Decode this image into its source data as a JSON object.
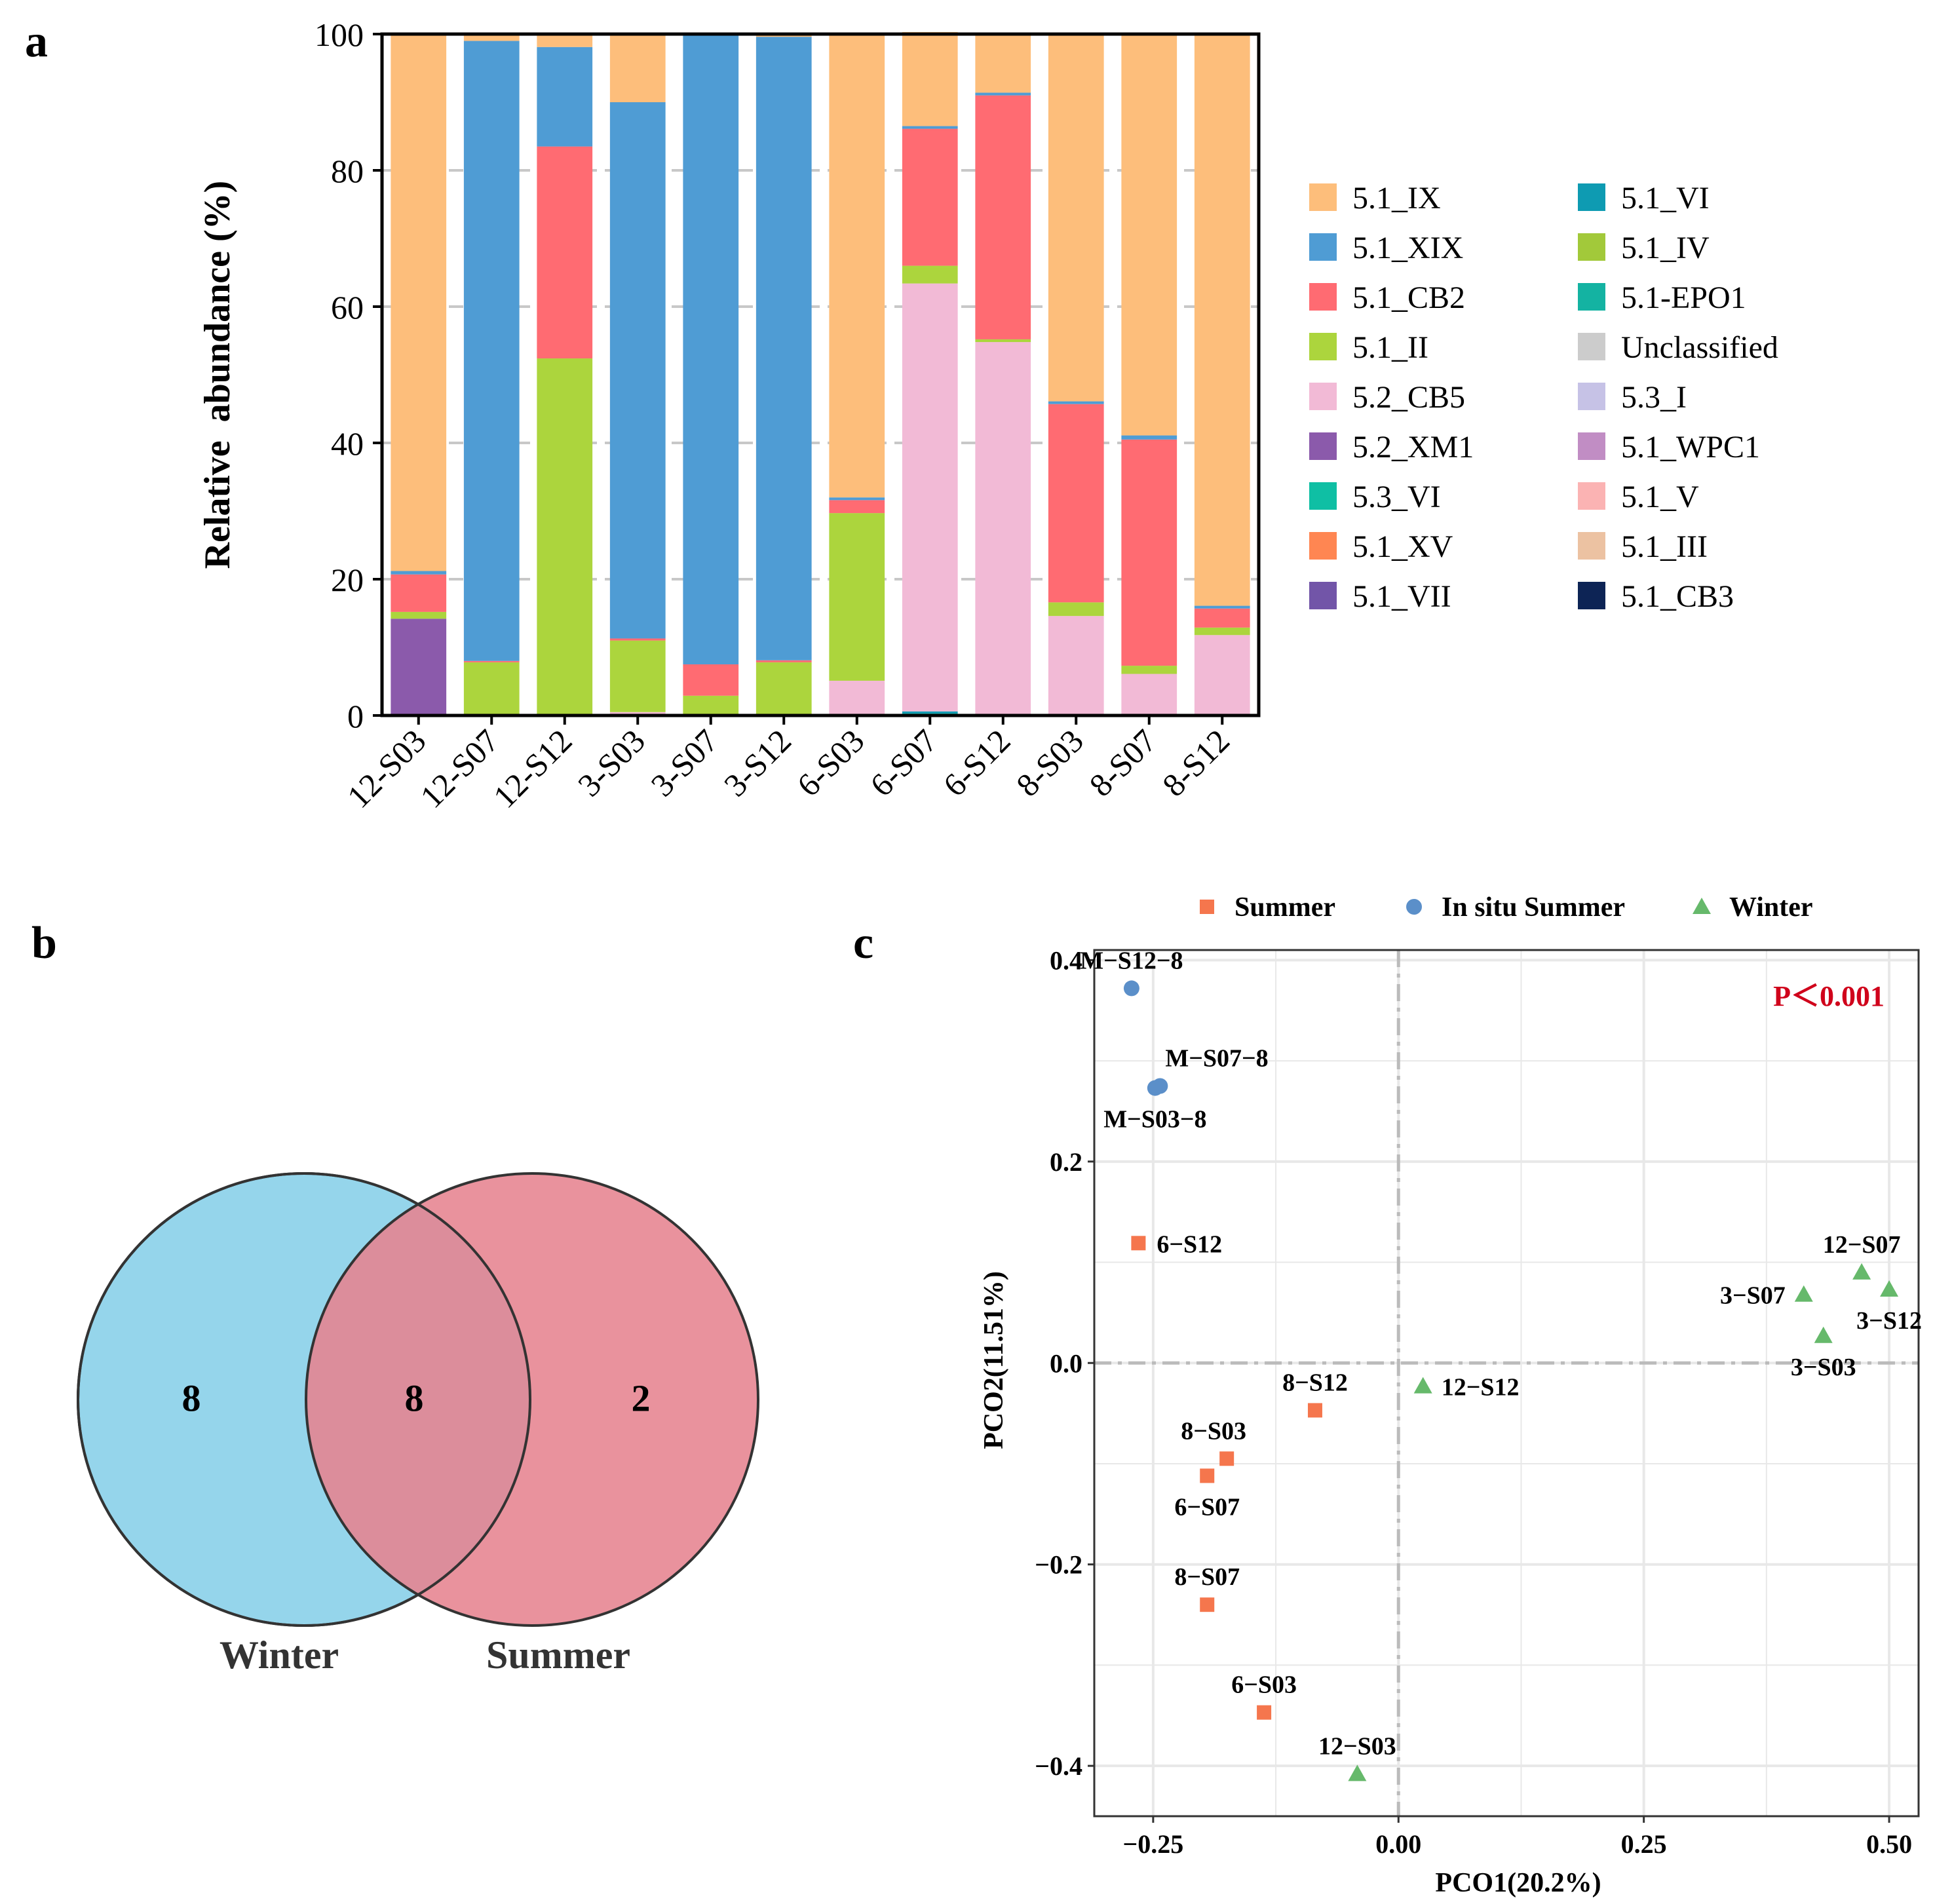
{
  "panels": {
    "a": "a",
    "b": "b",
    "c": "c"
  },
  "chart_data": [
    {
      "type": "bar",
      "stacked": true,
      "title": "",
      "xlabel": "",
      "ylabel": "Relative  abundance (%)",
      "ylim": [
        0,
        100
      ],
      "yticks": [
        0,
        20,
        40,
        60,
        80,
        100
      ],
      "grid": "horizontal dashed",
      "legend_position": "right",
      "categories": [
        "12-S03",
        "12-S07",
        "12-S12",
        "3-S03",
        "3-S07",
        "3-S12",
        "6-S03",
        "6-S07",
        "6-S12",
        "8-S03",
        "8-S07",
        "8-S12"
      ],
      "series": [
        {
          "name": "5.1_CB3",
          "color": "#0d2455",
          "values": [
            0,
            0,
            0,
            0,
            0,
            0,
            0,
            0,
            0,
            0,
            0,
            0
          ]
        },
        {
          "name": "5.1_III",
          "color": "#ecc2a2",
          "values": [
            0,
            0,
            0,
            0,
            0,
            0,
            0,
            0,
            0,
            0,
            0,
            0
          ]
        },
        {
          "name": "5.1_V",
          "color": "#fbb3b3",
          "values": [
            0,
            0,
            0,
            0,
            0,
            0,
            0,
            0,
            0,
            0,
            0,
            0
          ]
        },
        {
          "name": "5.1_WPC1",
          "color": "#c18dc4",
          "values": [
            0,
            0,
            0,
            0,
            0,
            0,
            0,
            0,
            0,
            0,
            0,
            0
          ]
        },
        {
          "name": "5.3_I",
          "color": "#c6c2e6",
          "values": [
            0,
            0,
            0,
            0,
            0,
            0,
            0,
            0,
            0,
            0,
            0,
            0
          ]
        },
        {
          "name": "Unclassified",
          "color": "#cccccc",
          "values": [
            0,
            0,
            0,
            0,
            0,
            0,
            0,
            0,
            0,
            0,
            0,
            0
          ]
        },
        {
          "name": "5.1-EPO1",
          "color": "#14b3a2",
          "values": [
            0,
            0,
            0,
            0,
            0,
            0,
            0,
            0.3,
            0,
            0,
            0,
            0
          ]
        },
        {
          "name": "5.1_IV",
          "color": "#a2c93a",
          "values": [
            0,
            0,
            0,
            0,
            0,
            0,
            0,
            0,
            0,
            0,
            0,
            0
          ]
        },
        {
          "name": "5.1_VI",
          "color": "#0e9bb2",
          "values": [
            0,
            0,
            0,
            0,
            0,
            0,
            0,
            0.3,
            0,
            0,
            0,
            0
          ]
        },
        {
          "name": "5.1_VII",
          "color": "#7255a8",
          "values": [
            0,
            0,
            0,
            0,
            0,
            0,
            0,
            0,
            0,
            0,
            0,
            0
          ]
        },
        {
          "name": "5.1_XV",
          "color": "#ff8652",
          "values": [
            0,
            0,
            0,
            0,
            0,
            0,
            0,
            0,
            0,
            0,
            0,
            0
          ]
        },
        {
          "name": "5.3_VI",
          "color": "#0fbfa4",
          "values": [
            0,
            0,
            0,
            0,
            0,
            0,
            0,
            0,
            0,
            0,
            0,
            0
          ]
        },
        {
          "name": "5.2_XM1",
          "color": "#8b5aab",
          "values": [
            14.2,
            0,
            0,
            0,
            0,
            0,
            0,
            0,
            0,
            0,
            0,
            0
          ]
        },
        {
          "name": "5.2_CB5",
          "color": "#f2bad6",
          "values": [
            0,
            0,
            0,
            0.5,
            0,
            0,
            5.1,
            62.8,
            54.8,
            14.6,
            6.1,
            11.8
          ]
        },
        {
          "name": "5.1_II",
          "color": "#acd53d",
          "values": [
            1.0,
            7.8,
            52.4,
            10.5,
            2.9,
            7.8,
            24.6,
            2.6,
            0.4,
            2.0,
            1.2,
            1.1
          ]
        },
        {
          "name": "5.1_CB2",
          "color": "#ff6b72",
          "values": [
            5.5,
            0.2,
            31.1,
            0.3,
            4.6,
            0.3,
            1.9,
            20.1,
            35.8,
            29.1,
            33.2,
            2.8
          ]
        },
        {
          "name": "5.1_XIX",
          "color": "#4f9cd4",
          "values": [
            0.5,
            91.0,
            14.6,
            78.7,
            92.4,
            91.5,
            0.4,
            0.4,
            0.4,
            0.4,
            0.6,
            0.4
          ]
        },
        {
          "name": "5.1_IX",
          "color": "#fdbe7b",
          "values": [
            78.8,
            1.0,
            1.9,
            10.0,
            0.1,
            0.4,
            68.0,
            13.8,
            8.6,
            53.9,
            58.9,
            83.9
          ]
        }
      ],
      "legend": [
        {
          "label": "5.1_IX",
          "color": "#fdbe7b"
        },
        {
          "label": "5.1_XIX",
          "color": "#4f9cd4"
        },
        {
          "label": "5.1_CB2",
          "color": "#ff6b72"
        },
        {
          "label": "5.1_II",
          "color": "#acd53d"
        },
        {
          "label": "5.2_CB5",
          "color": "#f2bad6"
        },
        {
          "label": "5.2_XM1",
          "color": "#8b5aab"
        },
        {
          "label": "5.3_VI",
          "color": "#0fbfa4"
        },
        {
          "label": "5.1_XV",
          "color": "#ff8652"
        },
        {
          "label": "5.1_VII",
          "color": "#7255a8"
        },
        {
          "label": "5.1_VI",
          "color": "#0e9bb2"
        },
        {
          "label": "5.1_IV",
          "color": "#a2c93a"
        },
        {
          "label": "5.1-EPO1",
          "color": "#14b3a2"
        },
        {
          "label": "Unclassified",
          "color": "#cccccc"
        },
        {
          "label": "5.3_I",
          "color": "#c6c2e6"
        },
        {
          "label": "5.1_WPC1",
          "color": "#c18dc4"
        },
        {
          "label": "5.1_V",
          "color": "#fbb3b3"
        },
        {
          "label": "5.1_III",
          "color": "#ecc2a2"
        },
        {
          "label": "5.1_CB3",
          "color": "#0d2455"
        }
      ]
    },
    {
      "type": "venn",
      "sets": [
        {
          "name": "Winter",
          "unique": "8",
          "color": "#8fd3ea"
        },
        {
          "name": "Summer",
          "unique": "2",
          "color": "#e6838f"
        }
      ],
      "intersection": "8"
    },
    {
      "type": "scatter",
      "xlabel": "PCO1(20.2%)",
      "ylabel": "PCO2(11.51%)",
      "xlim": [
        -0.31,
        0.53
      ],
      "ylim": [
        -0.45,
        0.41
      ],
      "xticks": [
        -0.25,
        0.0,
        0.25,
        0.5
      ],
      "xtick_labels": [
        "−0.25",
        "0.00",
        "0.25",
        "0.50"
      ],
      "yticks": [
        -0.4,
        -0.2,
        0.0,
        0.2,
        0.4
      ],
      "ytick_labels": [
        "−0.4",
        "−0.2",
        "0.0",
        "0.2",
        "0.4"
      ],
      "annotation": "P＜0.001",
      "annotation_color": "#d0021b",
      "legend_position": "top",
      "groups": [
        {
          "name": "Summer",
          "shape": "square",
          "color": "#f5764d"
        },
        {
          "name": "In situ Summer",
          "shape": "circle",
          "color": "#5b8fc9"
        },
        {
          "name": "Winter",
          "shape": "triangle",
          "color": "#66b96b"
        }
      ],
      "points": [
        {
          "label": "M−S12−8",
          "group": "In situ Summer",
          "x": -0.272,
          "y": 0.372,
          "label_pos": "above"
        },
        {
          "label": "M−S07−8",
          "group": "In situ Summer",
          "x": -0.243,
          "y": 0.275,
          "label_pos": "above-right"
        },
        {
          "label": "M−S03−8",
          "group": "In situ Summer",
          "x": -0.248,
          "y": 0.273,
          "label_pos": "below"
        },
        {
          "label": "6−S12",
          "group": "Summer",
          "x": -0.265,
          "y": 0.119,
          "label_pos": "right"
        },
        {
          "label": "8−S12",
          "group": "Summer",
          "x": -0.085,
          "y": -0.047,
          "label_pos": "above"
        },
        {
          "label": "8−S03",
          "group": "Summer",
          "x": -0.175,
          "y": -0.095,
          "label_pos": "above-left"
        },
        {
          "label": "6−S07",
          "group": "Summer",
          "x": -0.195,
          "y": -0.112,
          "label_pos": "below"
        },
        {
          "label": "8−S07",
          "group": "Summer",
          "x": -0.195,
          "y": -0.24,
          "label_pos": "above"
        },
        {
          "label": "6−S03",
          "group": "Summer",
          "x": -0.137,
          "y": -0.347,
          "label_pos": "above"
        },
        {
          "label": "12−S12",
          "group": "Winter",
          "x": 0.025,
          "y": -0.023,
          "label_pos": "right"
        },
        {
          "label": "12−S03",
          "group": "Winter",
          "x": -0.042,
          "y": -0.408,
          "label_pos": "above"
        },
        {
          "label": "12−S07",
          "group": "Winter",
          "x": 0.472,
          "y": 0.09,
          "label_pos": "above"
        },
        {
          "label": "3−S12",
          "group": "Winter",
          "x": 0.5,
          "y": 0.073,
          "label_pos": "below"
        },
        {
          "label": "3−S07",
          "group": "Winter",
          "x": 0.413,
          "y": 0.068,
          "label_pos": "left"
        },
        {
          "label": "3−S03",
          "group": "Winter",
          "x": 0.433,
          "y": 0.027,
          "label_pos": "below"
        }
      ]
    }
  ]
}
